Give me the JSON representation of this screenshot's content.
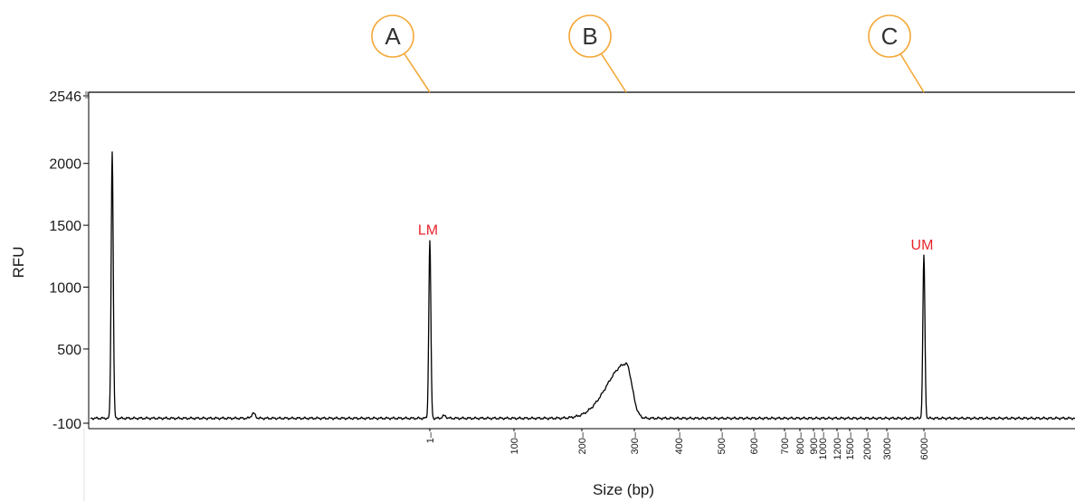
{
  "chart_data": {
    "type": "line",
    "ylabel": "RFU",
    "xlabel": "Size (bp)",
    "ylim": [
      -100,
      2546
    ],
    "y_tick_labels": [
      "2546",
      "2000",
      "1500",
      "1000",
      "500",
      "-100"
    ],
    "y_tick_values": [
      2546,
      2000,
      1500,
      1000,
      500,
      -100
    ],
    "x_tick_labels": [
      "1",
      "100",
      "200",
      "300",
      "400",
      "500",
      "600",
      "700",
      "800",
      "900",
      "1000",
      "1200",
      "1500",
      "2000",
      "3000",
      "6000"
    ],
    "grid": false,
    "series": [
      {
        "color": "#000000",
        "baseline": -60,
        "peaks": [
          {
            "position": "start",
            "height": 2100
          },
          {
            "position": "before-1",
            "height": -20
          },
          {
            "position": "1",
            "height": 1380
          },
          {
            "position": "near-1",
            "height": -40
          },
          {
            "position": "280",
            "height": 380
          },
          {
            "position": "6000",
            "height": 1260
          }
        ]
      }
    ],
    "annotations": [
      {
        "text": "LM",
        "at": "1",
        "height": 1380,
        "color": "#e8242a"
      },
      {
        "text": "UM",
        "at": "6000",
        "height": 1260,
        "color": "#e8242a"
      }
    ],
    "callouts": [
      {
        "label": "A",
        "points_to": "1"
      },
      {
        "label": "B",
        "points_to": "300"
      },
      {
        "label": "C",
        "points_to": "6000"
      }
    ],
    "callout_color": "#f4a93a"
  }
}
